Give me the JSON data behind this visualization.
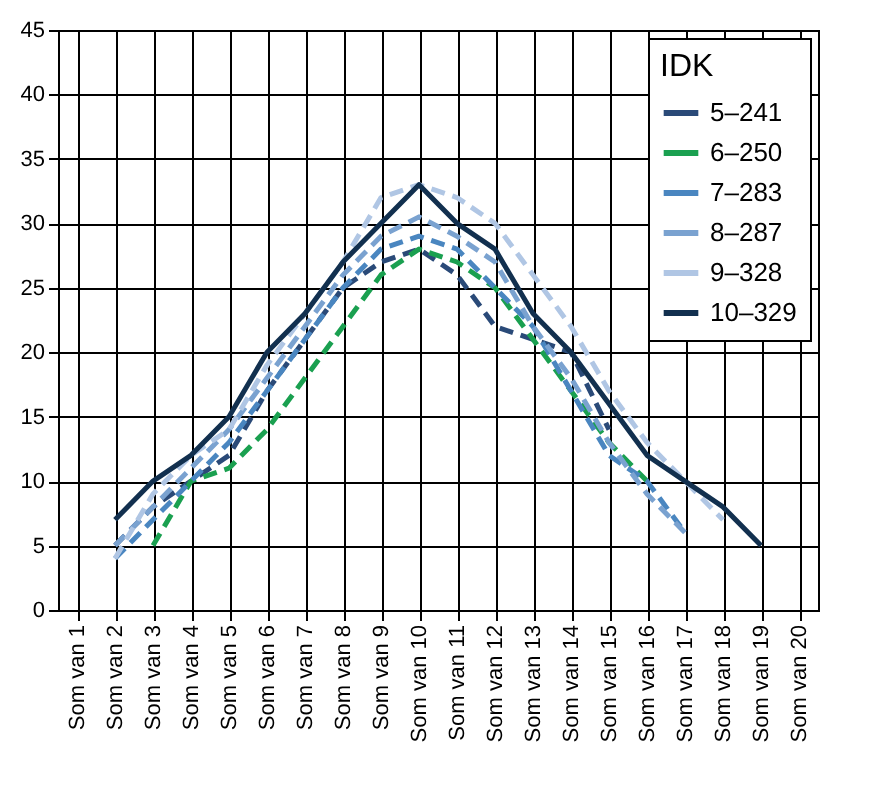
{
  "chart_data": {
    "type": "line",
    "legend_title": "IDK",
    "categories": [
      "Som van 1",
      "Som van 2",
      "Som van 3",
      "Som van 4",
      "Som van 5",
      "Som van 6",
      "Som van 7",
      "Som van 8",
      "Som van 9",
      "Som van 10",
      "Som van 11",
      "Som van 12",
      "Som van 13",
      "Som van 14",
      "Som van 15",
      "Som van 16",
      "Som van 17",
      "Som van 18",
      "Som van 19",
      "Som van 20"
    ],
    "series": [
      {
        "name": "5–241",
        "color": "#2a4a78",
        "line_style": "dashed",
        "values": [
          null,
          5,
          8,
          10,
          12,
          17,
          21,
          25,
          27,
          28,
          26,
          22,
          21,
          20,
          14,
          null,
          null,
          null,
          null,
          null
        ]
      },
      {
        "name": "6–250",
        "color": "#1aa050",
        "line_style": "dashed",
        "values": [
          null,
          null,
          5,
          10,
          11,
          14,
          18,
          22,
          26,
          28,
          27,
          25,
          21,
          17,
          13,
          10,
          null,
          null,
          null,
          null
        ]
      },
      {
        "name": "7–283",
        "color": "#4a86c0",
        "line_style": "dashed",
        "values": [
          null,
          4,
          7,
          10,
          13,
          17,
          21,
          25,
          28,
          29,
          28,
          25,
          22,
          17,
          12,
          10,
          6,
          null,
          null,
          null
        ]
      },
      {
        "name": "8–287",
        "color": "#7aa2d0",
        "line_style": "dashed",
        "values": [
          null,
          5,
          8,
          11,
          14,
          18,
          22,
          26,
          29,
          30.5,
          29,
          27,
          22,
          18,
          13,
          9,
          6,
          null,
          null,
          null
        ]
      },
      {
        "name": "9–328",
        "color": "#b0c6e4",
        "line_style": "dashed",
        "values": [
          null,
          4,
          9,
          12,
          14,
          19,
          23,
          27,
          32,
          33,
          32,
          30,
          26,
          22,
          17,
          13,
          10,
          7,
          null,
          null
        ]
      },
      {
        "name": "10–329",
        "color": "#12304f",
        "line_style": "solid",
        "values": [
          null,
          7,
          10,
          12,
          15,
          20,
          23,
          27,
          30,
          33,
          30,
          28,
          23,
          20,
          16,
          12,
          10,
          8,
          5,
          null
        ]
      }
    ],
    "ylim": [
      0,
      45
    ],
    "yticks": [
      0,
      5,
      10,
      15,
      20,
      25,
      30,
      35,
      40,
      45
    ],
    "grid": true,
    "legend": "top right",
    "marker": "none"
  }
}
